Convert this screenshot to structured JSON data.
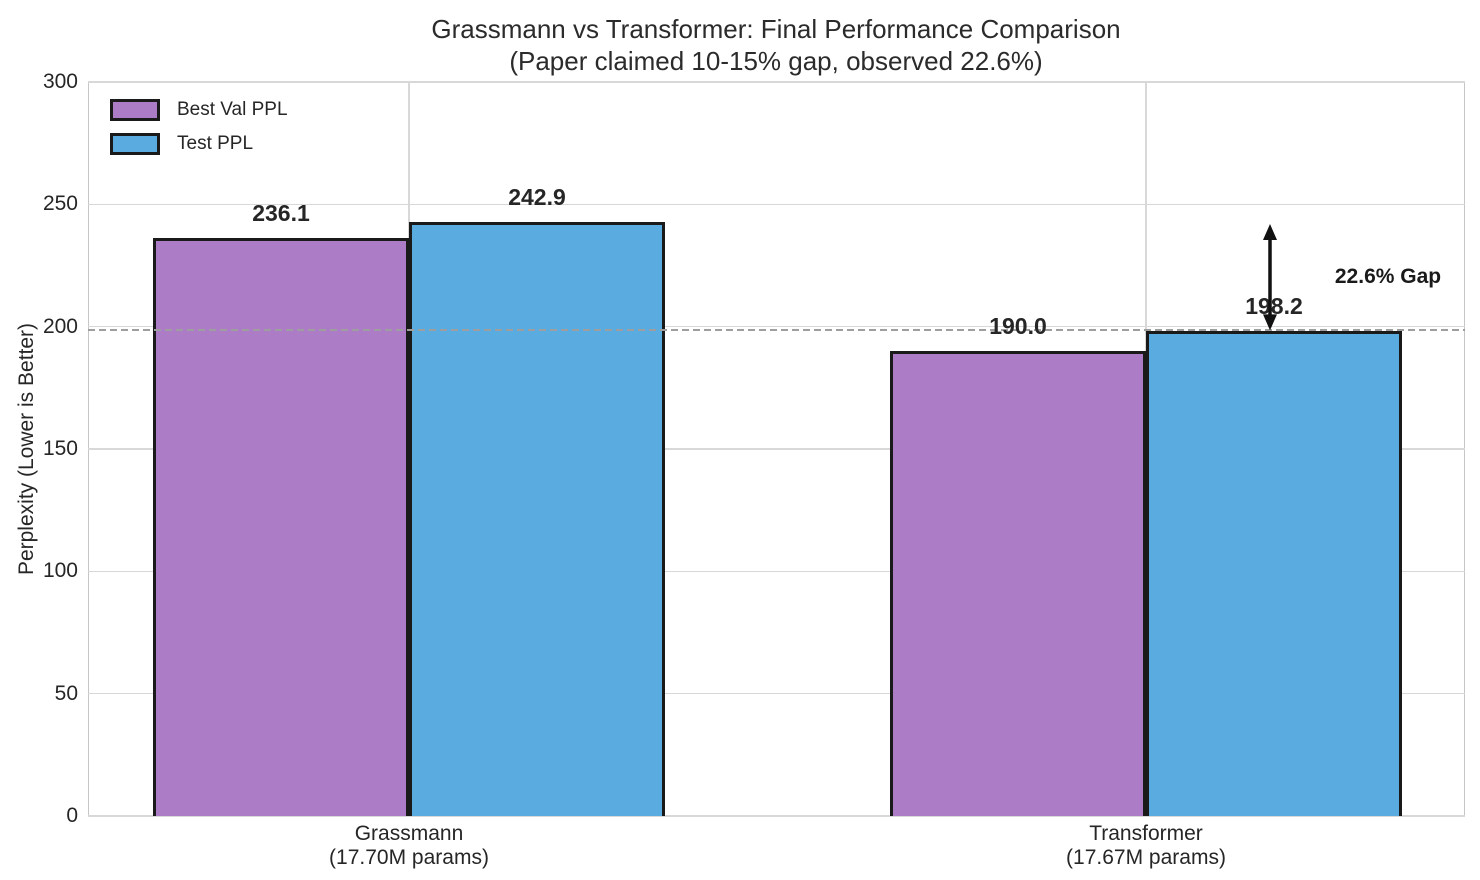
{
  "chart_data": {
    "type": "bar",
    "title": "Grassmann vs Transformer: Final Performance Comparison",
    "subtitle": "(Paper claimed 10-15% gap, observed 22.6%)",
    "ylabel": "Perplexity (Lower is Better)",
    "ylim": [
      0,
      300
    ],
    "yticks": [
      0,
      50,
      100,
      150,
      200,
      250,
      300
    ],
    "grid": true,
    "legend_position": "upper left",
    "categories": [
      {
        "label": "Grassmann",
        "sublabel": "(17.70M params)"
      },
      {
        "label": "Transformer",
        "sublabel": "(17.67M params)"
      }
    ],
    "series": [
      {
        "name": "Best Val PPL",
        "color": "#ac7cc7",
        "values": [
          236.1,
          190.0
        ]
      },
      {
        "name": "Test PPL",
        "color": "#5aabe0",
        "values": [
          242.9,
          198.2
        ]
      }
    ],
    "value_labels": [
      "236.1",
      "242.9",
      "190.0",
      "198.2"
    ],
    "bar_edge_color": "#1a1a1a",
    "reference_line": {
      "value": 198.2,
      "style": "dashed",
      "color": "#9e9e9e"
    },
    "annotation": {
      "label": "22.6% Gap",
      "arrow_from_value": 198.2,
      "arrow_to_value": 242.9,
      "arrow_color": "#111111"
    },
    "colors": {
      "grid": "#d8d8d8",
      "spine": "#c6c6c6",
      "text": "#262626"
    }
  }
}
